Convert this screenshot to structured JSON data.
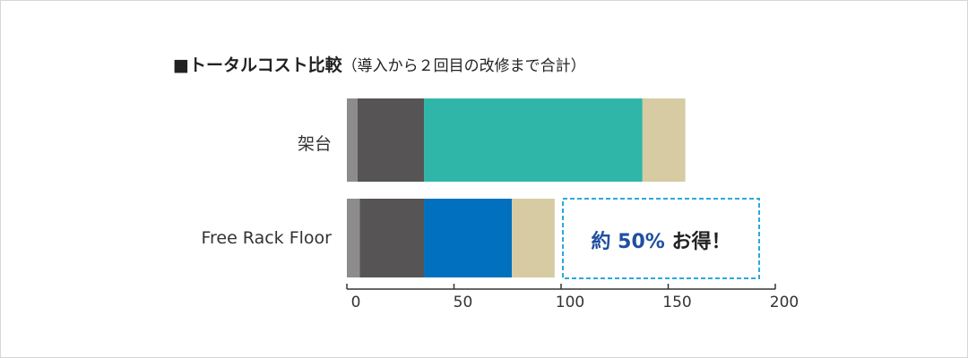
{
  "title": {
    "main": "■トータルコスト比較",
    "sub": "（導入から２回目の改修まで合計）"
  },
  "callout": {
    "pct_text": "約 50%",
    "rest_text": "お得！",
    "border_color": "#2aa8e0"
  },
  "chart_data": {
    "type": "bar",
    "orientation": "horizontal",
    "stacked": true,
    "title": "■トータルコスト比較（導入から２回目の改修まで合計）",
    "categories": [
      "架台",
      "Free Rack Floor"
    ],
    "series": [
      {
        "color": "#8c8c8c",
        "values": [
          5,
          6
        ]
      },
      {
        "color": "#565454",
        "values": [
          31,
          30
        ]
      },
      {
        "color": "#2fb6a8",
        "values": [
          102,
          0
        ]
      },
      {
        "color": "#0070bf",
        "values": [
          0,
          41
        ]
      },
      {
        "color": "#d6cba2",
        "values": [
          20,
          20
        ]
      }
    ],
    "xlim": [
      0,
      200
    ],
    "xticks": [
      "0",
      "50",
      "100",
      "150",
      "200"
    ],
    "xtick_values": [
      0,
      50,
      100,
      150,
      200
    ],
    "grid": false
  }
}
